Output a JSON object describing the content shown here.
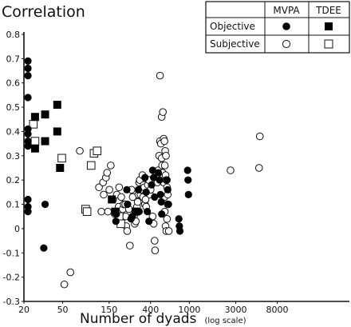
{
  "chart_data": {
    "type": "scatter",
    "title": "Correlation",
    "xlabel": "Number of dyads",
    "xlabel_note": "(log scale)",
    "x_scale": "log",
    "xlim": [
      20,
      9000
    ],
    "ylim": [
      -0.3,
      0.8
    ],
    "x_ticks": [
      {
        "value": 20,
        "label": "20"
      },
      {
        "value": 50,
        "label": "50"
      },
      {
        "value": 150,
        "label": "150"
      },
      {
        "value": 400,
        "label": "400"
      },
      {
        "value": 1000,
        "label": "1000"
      },
      {
        "value": 3000,
        "label": "3000"
      },
      {
        "value": 8000,
        "label": "8000"
      }
    ],
    "y_ticks": [
      {
        "value": 0.8,
        "label": "0.8"
      },
      {
        "value": 0.7,
        "label": "0.7"
      },
      {
        "value": 0.6,
        "label": "0.6"
      },
      {
        "value": 0.5,
        "label": "0.5"
      },
      {
        "value": 0.4,
        "label": "0.4"
      },
      {
        "value": 0.3,
        "label": "0.3"
      },
      {
        "value": 0.2,
        "label": "0.2"
      },
      {
        "value": 0.1,
        "label": "0.1"
      },
      {
        "value": 0,
        "label": "0"
      },
      {
        "value": -0.1,
        "label": "-0.1"
      },
      {
        "value": -0.2,
        "label": "-0.2"
      },
      {
        "value": -0.3,
        "label": "-0.3"
      }
    ],
    "grid": false,
    "legend": {
      "placement": "top-right",
      "columns": [
        "MVPA",
        "TDEE"
      ],
      "rows": [
        "Objective",
        "Subjective"
      ]
    },
    "series": [
      {
        "name": "Objective MVPA",
        "marker": "filled-circle",
        "points": [
          [
            22,
            0.69
          ],
          [
            22,
            0.66
          ],
          [
            22,
            0.63
          ],
          [
            22,
            0.54
          ],
          [
            22,
            0.41
          ],
          [
            22,
            0.39
          ],
          [
            22,
            0.36
          ],
          [
            22,
            0.34
          ],
          [
            22,
            0.12
          ],
          [
            22,
            0.09
          ],
          [
            22,
            0.07
          ],
          [
            33,
            0.1
          ],
          [
            32,
            -0.08
          ],
          [
            176,
            0.03
          ],
          [
            178,
            0.06
          ],
          [
            228,
            0.16
          ],
          [
            232,
            0.1
          ],
          [
            252,
            0.04
          ],
          [
            260,
            0.05
          ],
          [
            300,
            0.16
          ],
          [
            305,
            0.07
          ],
          [
            350,
            0.21
          ],
          [
            360,
            0.15
          ],
          [
            370,
            0.07
          ],
          [
            385,
            0.03
          ],
          [
            410,
            0.18
          ],
          [
            420,
            0.24
          ],
          [
            430,
            0.21
          ],
          [
            440,
            0.13
          ],
          [
            480,
            0.23
          ],
          [
            495,
            0.2
          ],
          [
            505,
            0.14
          ],
          [
            515,
            0.11
          ],
          [
            520,
            0.06
          ],
          [
            590,
            0.2
          ],
          [
            600,
            0.16
          ],
          [
            610,
            0.1
          ],
          [
            780,
            0.04
          ],
          [
            790,
            0.01
          ],
          [
            800,
            -0.01
          ],
          [
            960,
            0.24
          ],
          [
            970,
            0.2
          ],
          [
            980,
            0.14
          ]
        ]
      },
      {
        "name": "Objective TDEE",
        "marker": "filled-square",
        "points": [
          [
            26,
            0.46
          ],
          [
            26,
            0.33
          ],
          [
            33,
            0.47
          ],
          [
            33,
            0.36
          ],
          [
            44,
            0.51
          ],
          [
            44,
            0.4
          ],
          [
            47,
            0.25
          ],
          [
            160,
            0.12
          ],
          [
            173,
            0.07
          ],
          [
            280,
            0.07
          ]
        ]
      },
      {
        "name": "Subjective MVPA",
        "marker": "open-circle",
        "points": [
          [
            52,
            -0.23
          ],
          [
            60,
            -0.18
          ],
          [
            75,
            0.32
          ],
          [
            118,
            0.17
          ],
          [
            125,
            0.07
          ],
          [
            130,
            0.19
          ],
          [
            132,
            0.14
          ],
          [
            139,
            0.21
          ],
          [
            143,
            0.23
          ],
          [
            146,
            0.07
          ],
          [
            151,
            0.16
          ],
          [
            156,
            0.26
          ],
          [
            165,
            0.12
          ],
          [
            172,
            0.06
          ],
          [
            180,
            0.14
          ],
          [
            188,
            0.09
          ],
          [
            190,
            0.17
          ],
          [
            200,
            0.13
          ],
          [
            207,
            0.08
          ],
          [
            212,
            0.1
          ],
          [
            220,
            0.1
          ],
          [
            222,
            0.05
          ],
          [
            225,
            0.01
          ],
          [
            230,
            -0.01
          ],
          [
            240,
            0.08
          ],
          [
            245,
            -0.07
          ],
          [
            255,
            0.16
          ],
          [
            262,
            0.13
          ],
          [
            270,
            0.05
          ],
          [
            275,
            0.02
          ],
          [
            282,
            0.03
          ],
          [
            290,
            0.09
          ],
          [
            295,
            0.11
          ],
          [
            300,
            0.14
          ],
          [
            305,
            0.19
          ],
          [
            310,
            0.2
          ],
          [
            315,
            0.14
          ],
          [
            320,
            0.16
          ],
          [
            330,
            0.22
          ],
          [
            335,
            0.13
          ],
          [
            340,
            0.18
          ],
          [
            345,
            0.17
          ],
          [
            350,
            0.1
          ],
          [
            355,
            0.12
          ],
          [
            360,
            0.09
          ],
          [
            375,
            0.18
          ],
          [
            385,
            0.2
          ],
          [
            395,
            0.14
          ],
          [
            400,
            0.16
          ],
          [
            420,
            0.05
          ],
          [
            430,
            0.02
          ],
          [
            440,
            -0.05
          ],
          [
            445,
            -0.09
          ],
          [
            470,
            0.19
          ],
          [
            480,
            0.24
          ],
          [
            490,
            0.3
          ],
          [
            500,
            0.36
          ],
          [
            510,
            0.35
          ],
          [
            520,
            0.29
          ],
          [
            525,
            0.26
          ],
          [
            530,
            0.23
          ],
          [
            540,
            0.21
          ],
          [
            545,
            0.19
          ],
          [
            555,
            0.13
          ],
          [
            560,
            0.07
          ],
          [
            570,
            0.01
          ],
          [
            580,
            -0.01
          ],
          [
            590,
            0.04
          ],
          [
            600,
            0.1
          ],
          [
            615,
            -0.01
          ],
          [
            500,
            0.63
          ],
          [
            520,
            0.46
          ],
          [
            535,
            0.48
          ],
          [
            545,
            0.37
          ],
          [
            555,
            0.36
          ],
          [
            565,
            0.32
          ],
          [
            575,
            0.3
          ],
          [
            560,
            0.26
          ],
          [
            570,
            0.22
          ],
          [
            580,
            0.2
          ],
          [
            590,
            0.17
          ],
          [
            600,
            0.14
          ],
          [
            2650,
            0.24
          ],
          [
            5300,
            0.38
          ],
          [
            5200,
            0.25
          ]
        ]
      },
      {
        "name": "Subjective TDEE",
        "marker": "open-square",
        "points": [
          [
            25,
            0.43
          ],
          [
            26,
            0.36
          ],
          [
            49,
            0.29
          ],
          [
            98,
            0.26
          ],
          [
            105,
            0.31
          ],
          [
            113,
            0.32
          ],
          [
            86,
            0.08
          ],
          [
            89,
            0.07
          ],
          [
            190,
            0.05
          ],
          [
            198,
            0.02
          ]
        ]
      }
    ]
  }
}
